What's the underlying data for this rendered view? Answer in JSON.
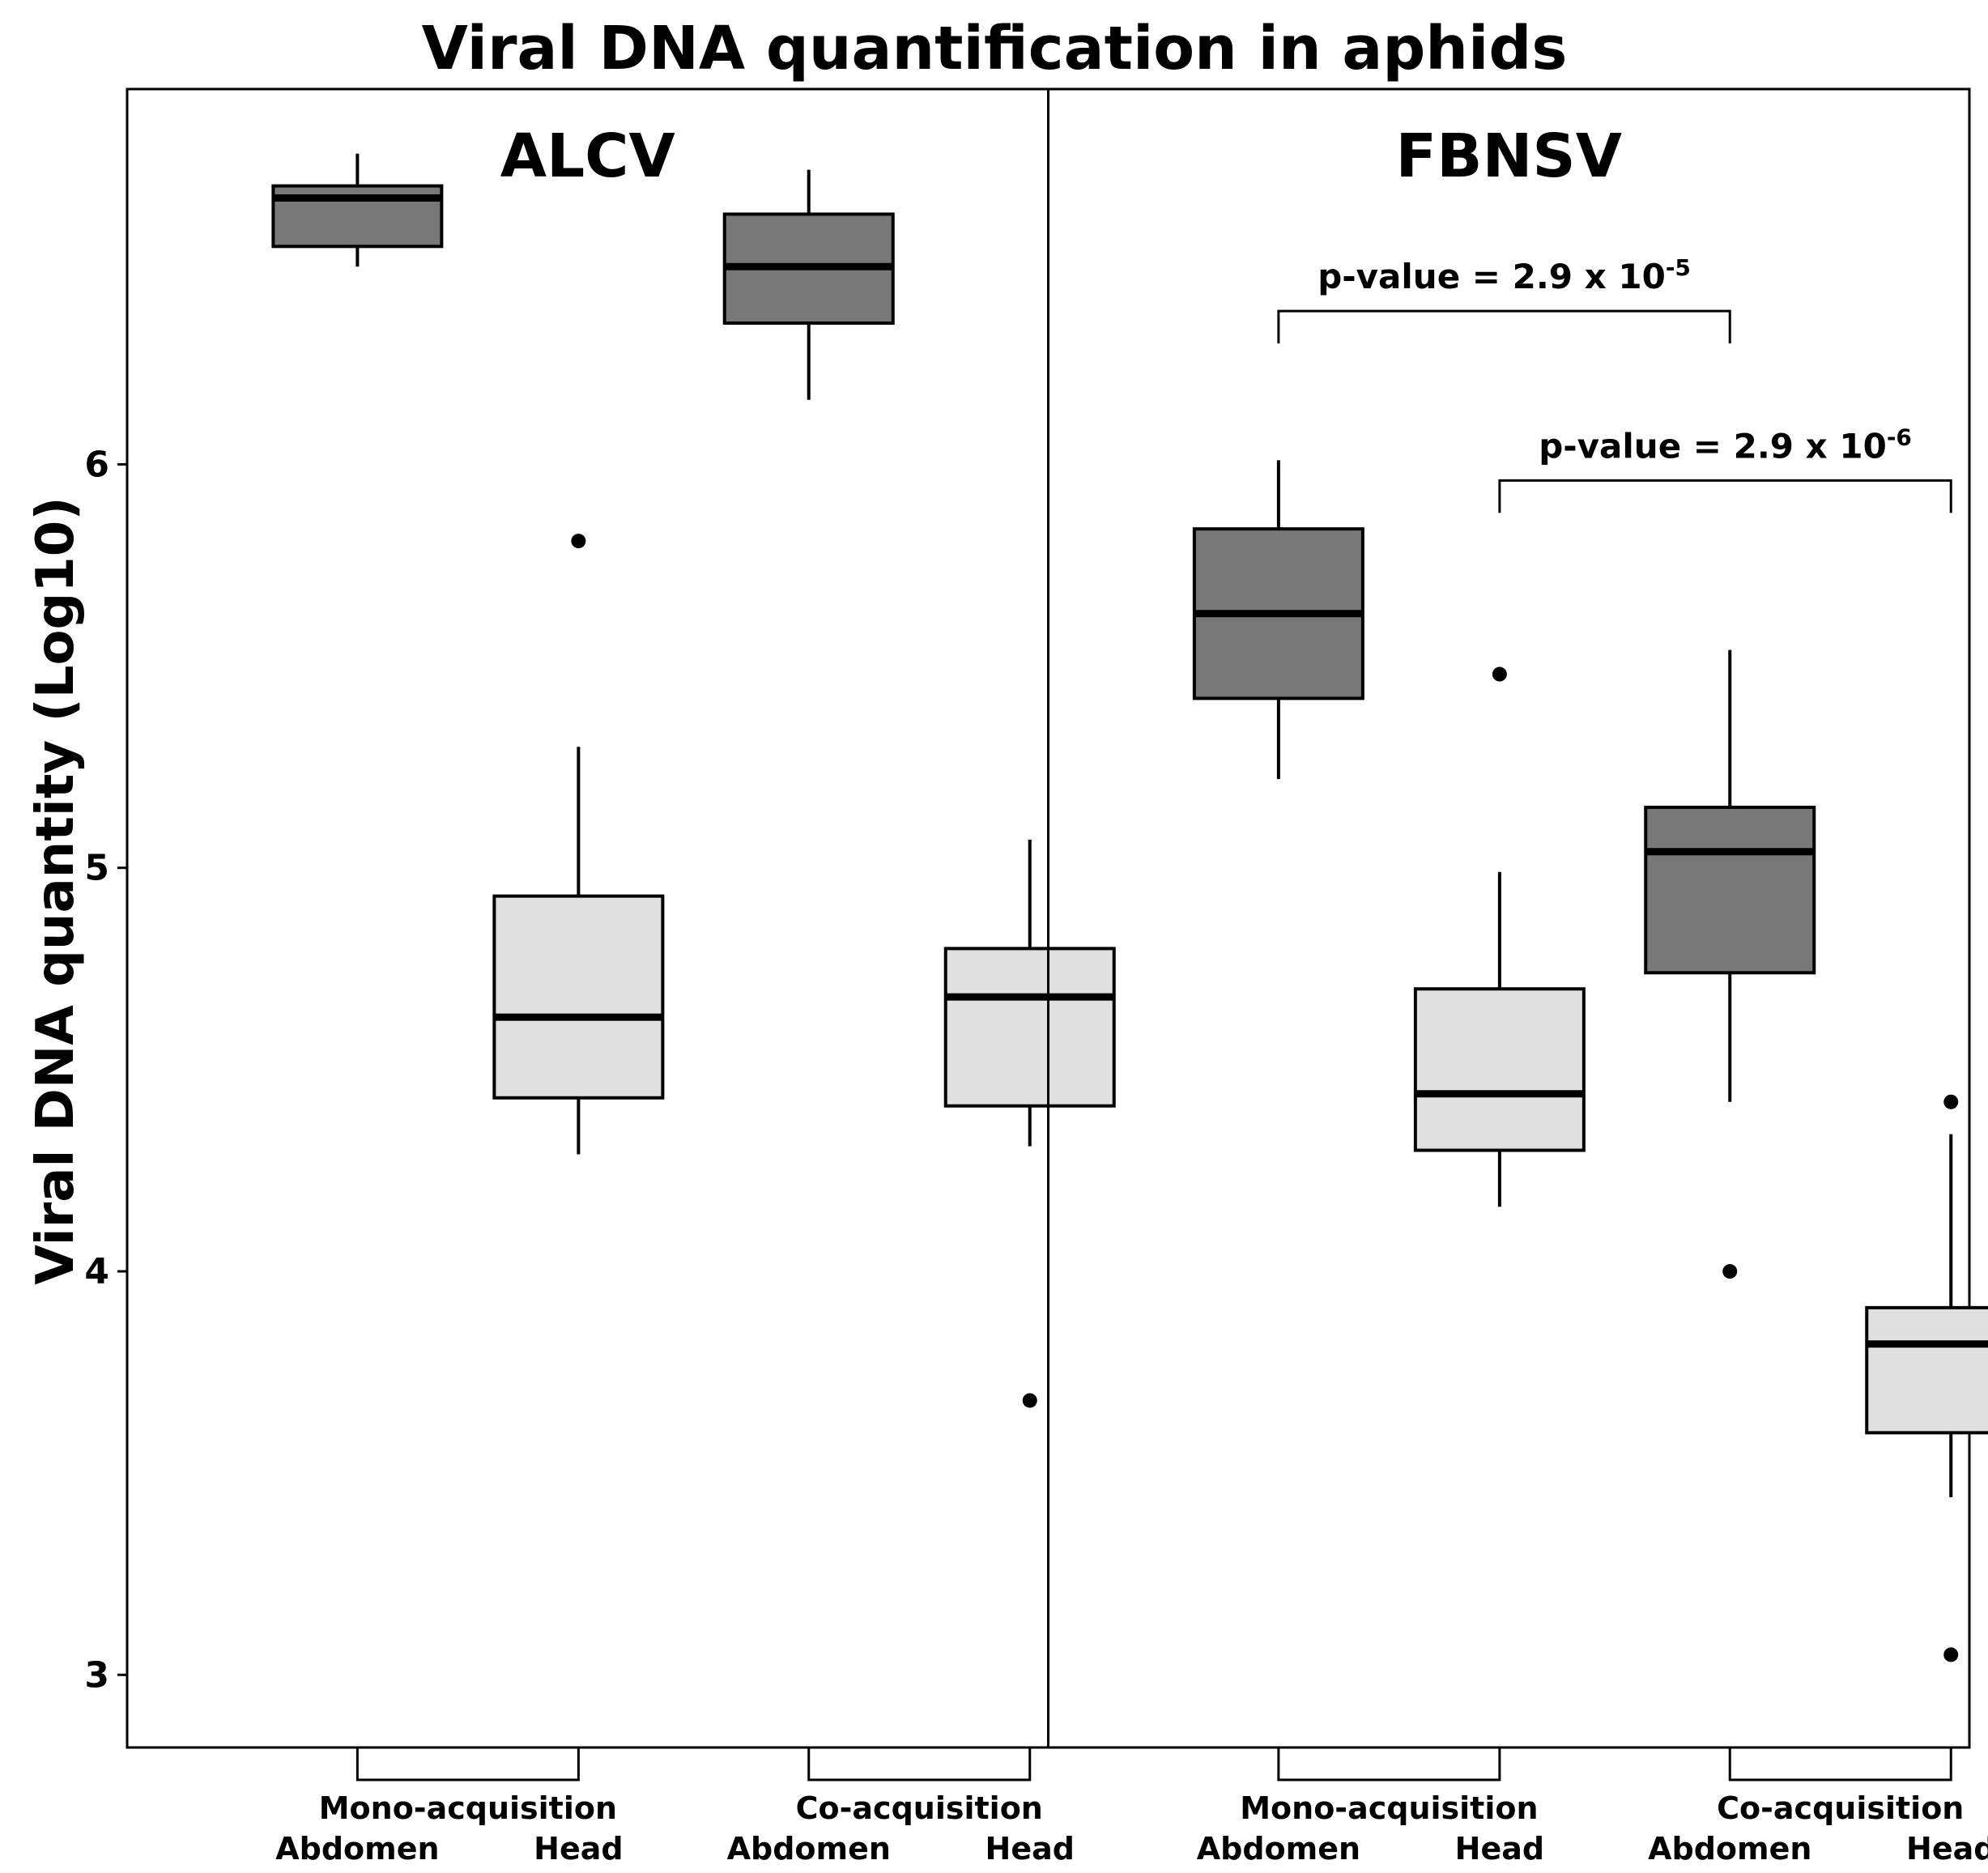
{
  "chart_data": {
    "type": "boxplot",
    "title": "Viral DNA quantification in aphids",
    "ylabel": "Viral DNA quantity (Log10)",
    "ylim": [
      2.82,
      6.93
    ],
    "yticks": [
      3,
      4,
      5,
      6
    ],
    "colors": {
      "abdomen": "#787878",
      "head": "#e0e0e0",
      "outline": "#000000"
    },
    "panels": [
      {
        "name": "ALCV",
        "groups": [
          "Mono-acquisition",
          "Co-acquisition"
        ],
        "boxes": [
          {
            "group": "Mono-acquisition",
            "tissue": "Abdomen",
            "whisker_low": 6.49,
            "q1": 6.54,
            "median": 6.66,
            "q3": 6.69,
            "whisker_high": 6.77,
            "outliers": []
          },
          {
            "group": "Mono-acquisition",
            "tissue": "Head",
            "whisker_low": 4.29,
            "q1": 4.43,
            "median": 4.63,
            "q3": 4.93,
            "whisker_high": 5.3,
            "outliers": [
              5.81
            ]
          },
          {
            "group": "Co-acquisition",
            "tissue": "Abdomen",
            "whisker_low": 6.16,
            "q1": 6.35,
            "median": 6.49,
            "q3": 6.62,
            "whisker_high": 6.73,
            "outliers": []
          },
          {
            "group": "Co-acquisition",
            "tissue": "Head",
            "whisker_low": 4.31,
            "q1": 4.41,
            "median": 4.68,
            "q3": 4.8,
            "whisker_high": 5.07,
            "outliers": [
              3.68
            ]
          }
        ],
        "annotations": []
      },
      {
        "name": "FBNSV",
        "groups": [
          "Mono-acquisition",
          "Co-acquisition"
        ],
        "boxes": [
          {
            "group": "Mono-acquisition",
            "tissue": "Abdomen",
            "whisker_low": 5.22,
            "q1": 5.42,
            "median": 5.63,
            "q3": 5.84,
            "whisker_high": 6.01,
            "outliers": []
          },
          {
            "group": "Mono-acquisition",
            "tissue": "Head",
            "whisker_low": 4.16,
            "q1": 4.3,
            "median": 4.44,
            "q3": 4.7,
            "whisker_high": 4.99,
            "outliers": [
              5.48
            ]
          },
          {
            "group": "Co-acquisition",
            "tissue": "Abdomen",
            "whisker_low": 4.42,
            "q1": 4.74,
            "median": 5.04,
            "q3": 5.15,
            "whisker_high": 5.54,
            "outliers": [
              4.0
            ]
          },
          {
            "group": "Co-acquisition",
            "tissue": "Head",
            "whisker_low": 3.44,
            "q1": 3.6,
            "median": 3.82,
            "q3": 3.91,
            "whisker_high": 4.34,
            "outliers": [
              4.42,
              3.05
            ]
          }
        ],
        "annotations": [
          {
            "from": 0,
            "to": 2,
            "y": 6.38,
            "text": "p-value = 2.9 x 10",
            "exponent": "-5"
          },
          {
            "from": 1,
            "to": 3,
            "y": 5.96,
            "text": "p-value = 2.9 x 10",
            "exponent": "-6"
          }
        ]
      }
    ]
  }
}
